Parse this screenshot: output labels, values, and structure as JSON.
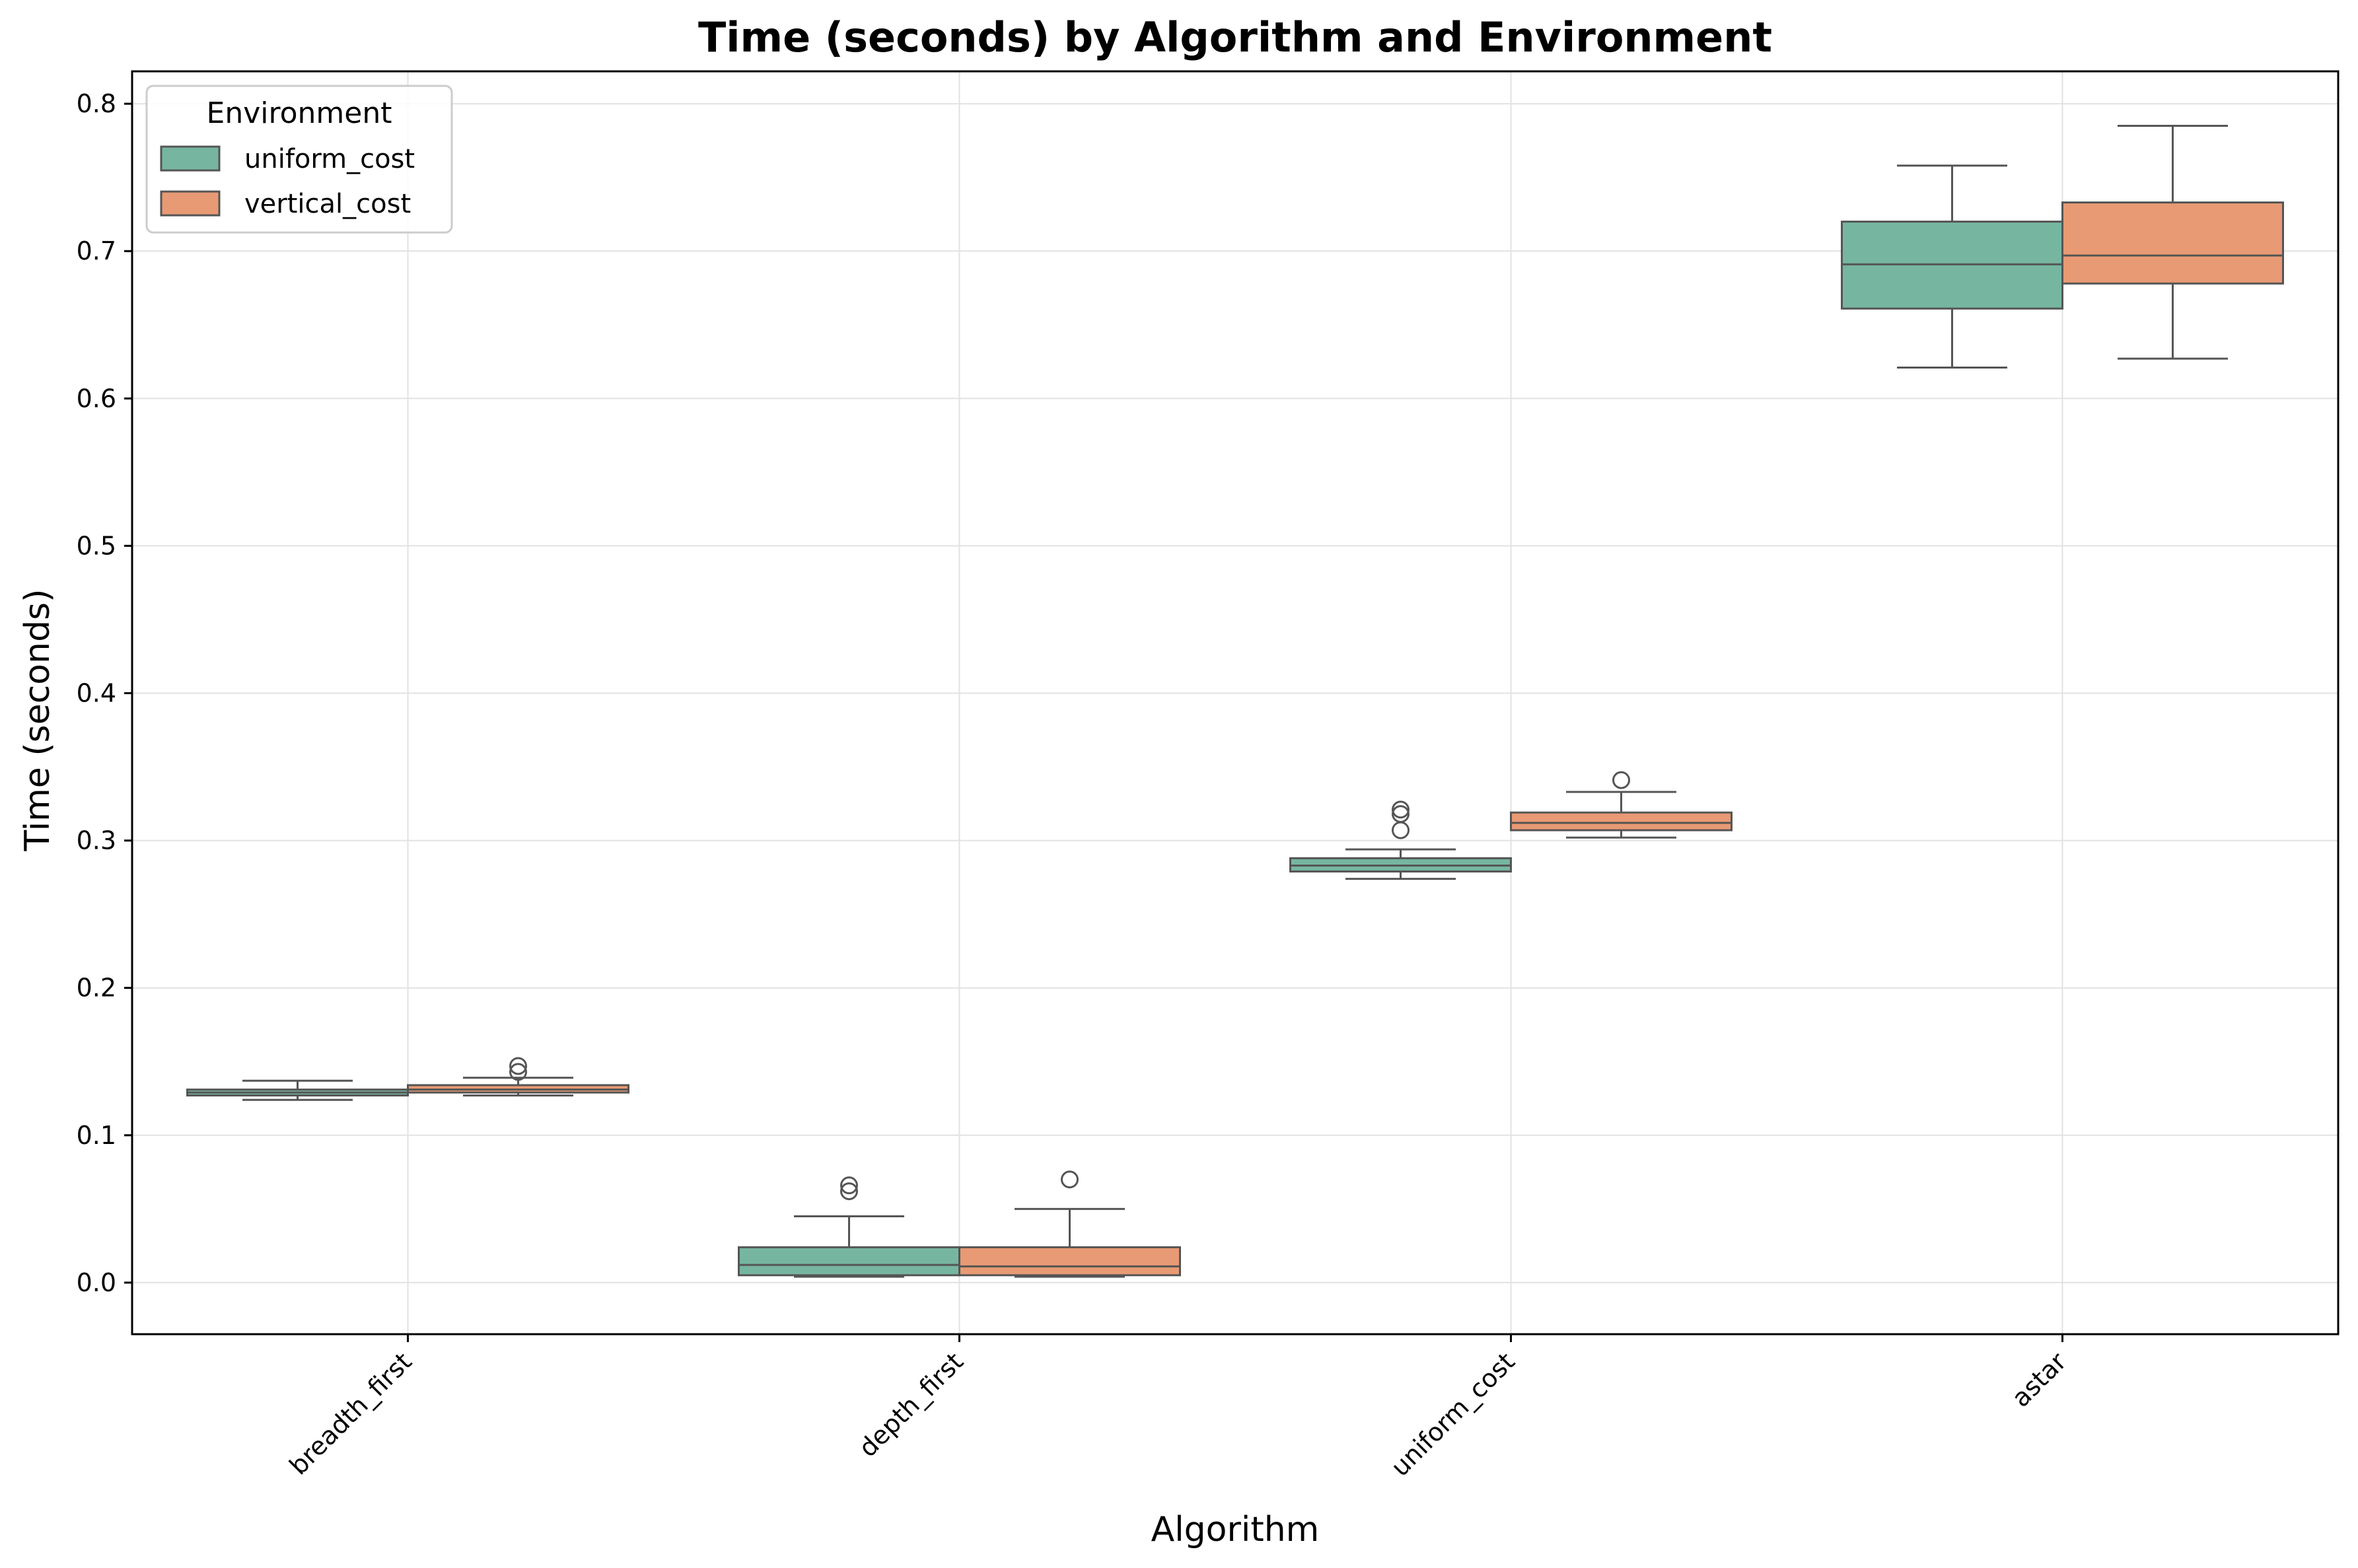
{
  "chart_data": {
    "type": "box",
    "title": "Time (seconds) by Algorithm and Environment",
    "xlabel": "Algorithm",
    "ylabel": "Time (seconds)",
    "categories": [
      "breadth_first",
      "depth_first",
      "uniform_cost",
      "astar"
    ],
    "ylim": [
      -0.035,
      0.822
    ],
    "yticks": [
      "0.0",
      "0.1",
      "0.2",
      "0.3",
      "0.4",
      "0.5",
      "0.6",
      "0.7",
      "0.8"
    ],
    "ytick_values": [
      0.0,
      0.1,
      0.2,
      0.3,
      0.4,
      0.5,
      0.6,
      0.7,
      0.8
    ],
    "grid": true,
    "legend": {
      "title": "Environment",
      "placement": "top-left"
    },
    "series": [
      {
        "name": "uniform_cost",
        "color": "#76b6a0",
        "boxes": [
          {
            "whisker_low": 0.124,
            "q1": 0.127,
            "median": 0.129,
            "q3": 0.131,
            "whisker_high": 0.137,
            "outliers": []
          },
          {
            "whisker_low": 0.004,
            "q1": 0.005,
            "median": 0.012,
            "q3": 0.024,
            "whisker_high": 0.045,
            "outliers": [
              0.062,
              0.066
            ]
          },
          {
            "whisker_low": 0.274,
            "q1": 0.279,
            "median": 0.283,
            "q3": 0.288,
            "whisker_high": 0.294,
            "outliers": [
              0.307,
              0.318,
              0.321
            ]
          },
          {
            "whisker_low": 0.621,
            "q1": 0.661,
            "median": 0.691,
            "q3": 0.72,
            "whisker_high": 0.758,
            "outliers": []
          }
        ]
      },
      {
        "name": "vertical_cost",
        "color": "#e89a74",
        "boxes": [
          {
            "whisker_low": 0.127,
            "q1": 0.129,
            "median": 0.131,
            "q3": 0.134,
            "whisker_high": 0.139,
            "outliers": [
              0.143,
              0.147
            ]
          },
          {
            "whisker_low": 0.004,
            "q1": 0.005,
            "median": 0.011,
            "q3": 0.024,
            "whisker_high": 0.05,
            "outliers": [
              0.07
            ]
          },
          {
            "whisker_low": 0.302,
            "q1": 0.307,
            "median": 0.312,
            "q3": 0.319,
            "whisker_high": 0.333,
            "outliers": [
              0.341
            ]
          },
          {
            "whisker_low": 0.627,
            "q1": 0.678,
            "median": 0.697,
            "q3": 0.733,
            "whisker_high": 0.785,
            "outliers": []
          }
        ]
      }
    ]
  }
}
